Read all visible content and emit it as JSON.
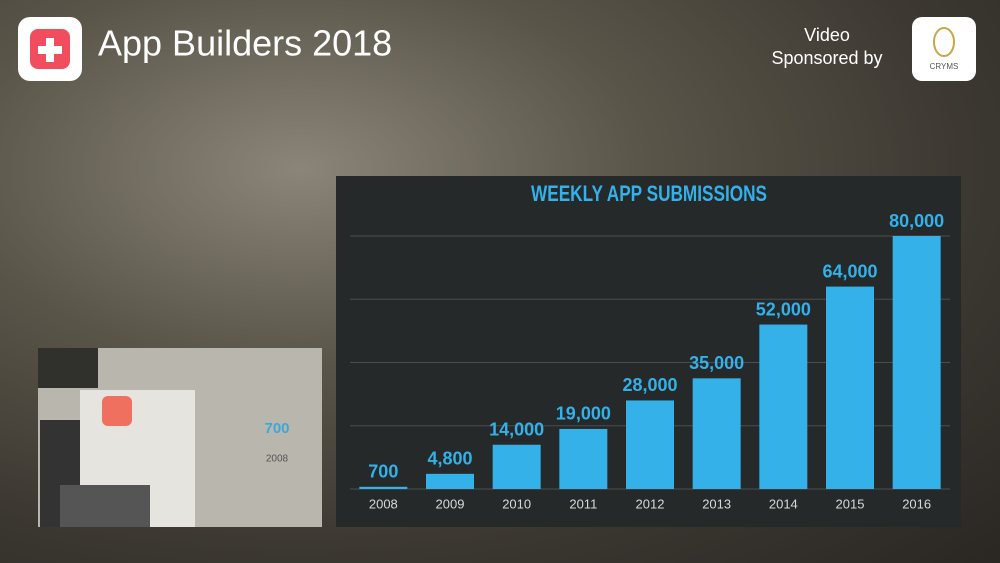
{
  "header": {
    "title": "App Builders 2018",
    "sponsor_line1": "Video",
    "sponsor_line2": "Sponsored by",
    "sponsor_logo": "CRYMS"
  },
  "inset": {
    "value_text": "700",
    "year_text": "2008"
  },
  "chart_data": {
    "type": "bar",
    "title": "WEEKLY APP SUBMISSIONS",
    "categories": [
      "2008",
      "2009",
      "2010",
      "2011",
      "2012",
      "2013",
      "2014",
      "2015",
      "2016"
    ],
    "values": [
      700,
      4800,
      14000,
      19000,
      28000,
      35000,
      52000,
      64000,
      80000
    ],
    "value_labels": [
      "700",
      "4,800",
      "14,000",
      "19,000",
      "28,000",
      "35,000",
      "52,000",
      "64,000",
      "80,000"
    ],
    "color": "#33b1e8",
    "ylim": [
      0,
      80000
    ],
    "yticks": [
      0,
      20000,
      40000,
      60000,
      80000
    ],
    "grid": true
  }
}
